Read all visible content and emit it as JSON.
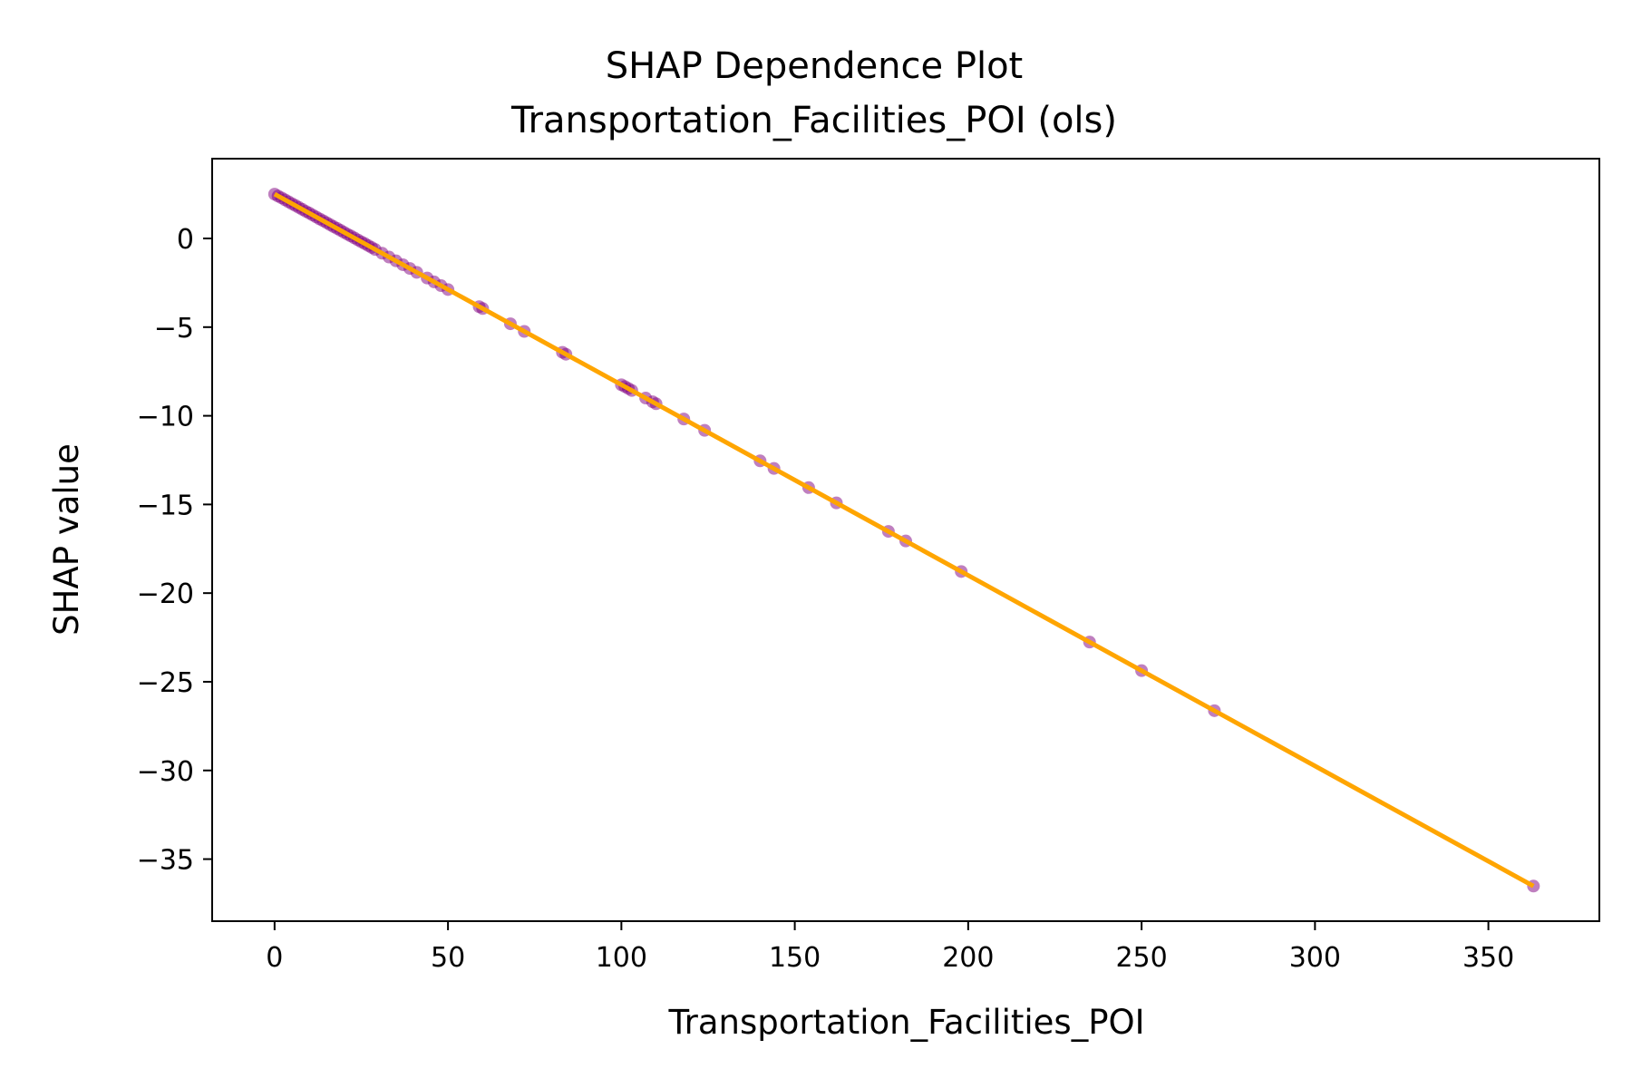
{
  "chart_data": {
    "type": "scatter",
    "title": "SHAP Dependence Plot",
    "subtitle": "Transportation_Facilities_POI (ols)",
    "xlabel": "Transportation_Facilities_POI",
    "ylabel": "SHAP value",
    "xlim": [
      -18,
      382
    ],
    "ylim": [
      -38.5,
      4.5
    ],
    "xticks": [
      0,
      50,
      100,
      150,
      200,
      250,
      300,
      350
    ],
    "yticks": [
      0,
      -5,
      -10,
      -15,
      -20,
      -25,
      -30,
      -35
    ],
    "xtick_labels": [
      "0",
      "50",
      "100",
      "150",
      "200",
      "250",
      "300",
      "350"
    ],
    "ytick_labels": [
      "0",
      "−5",
      "−10",
      "−15",
      "−20",
      "−25",
      "−30",
      "−35"
    ],
    "grid": false,
    "series": [
      {
        "kind": "scatter",
        "color": "#800080",
        "x": [
          0,
          1,
          2,
          3,
          4,
          5,
          6,
          7,
          8,
          9,
          10,
          11,
          12,
          13,
          14,
          15,
          16,
          17,
          18,
          19,
          20,
          21,
          22,
          23,
          24,
          25,
          26,
          27,
          28,
          29,
          31,
          33,
          35,
          37,
          39,
          41,
          44,
          46,
          48,
          50,
          59,
          60,
          68,
          72,
          83,
          84,
          100,
          101,
          102,
          103,
          107,
          109,
          110,
          118,
          124,
          140,
          144,
          154,
          162,
          177,
          182,
          198,
          235,
          250,
          271,
          363
        ],
        "y": [
          2.5,
          2.39,
          2.29,
          2.18,
          2.07,
          1.96,
          1.86,
          1.75,
          1.64,
          1.53,
          1.43,
          1.32,
          1.21,
          1.1,
          1.0,
          0.89,
          0.78,
          0.67,
          0.57,
          0.46,
          0.35,
          0.24,
          0.14,
          0.03,
          -0.08,
          -0.19,
          -0.29,
          -0.4,
          -0.51,
          -0.62,
          -0.83,
          -1.05,
          -1.26,
          -1.48,
          -1.69,
          -1.91,
          -2.23,
          -2.45,
          -2.66,
          -2.88,
          -3.85,
          -3.95,
          -4.81,
          -5.24,
          -6.42,
          -6.53,
          -8.25,
          -8.35,
          -8.46,
          -8.57,
          -9.0,
          -9.21,
          -9.32,
          -10.18,
          -10.82,
          -12.54,
          -12.97,
          -14.05,
          -14.91,
          -16.52,
          -17.06,
          -18.78,
          -22.76,
          -24.37,
          -26.63,
          -36.52
        ]
      },
      {
        "kind": "line",
        "color": "#FFA500",
        "x": [
          0,
          363
        ],
        "y": [
          2.5,
          -36.52
        ]
      }
    ]
  }
}
